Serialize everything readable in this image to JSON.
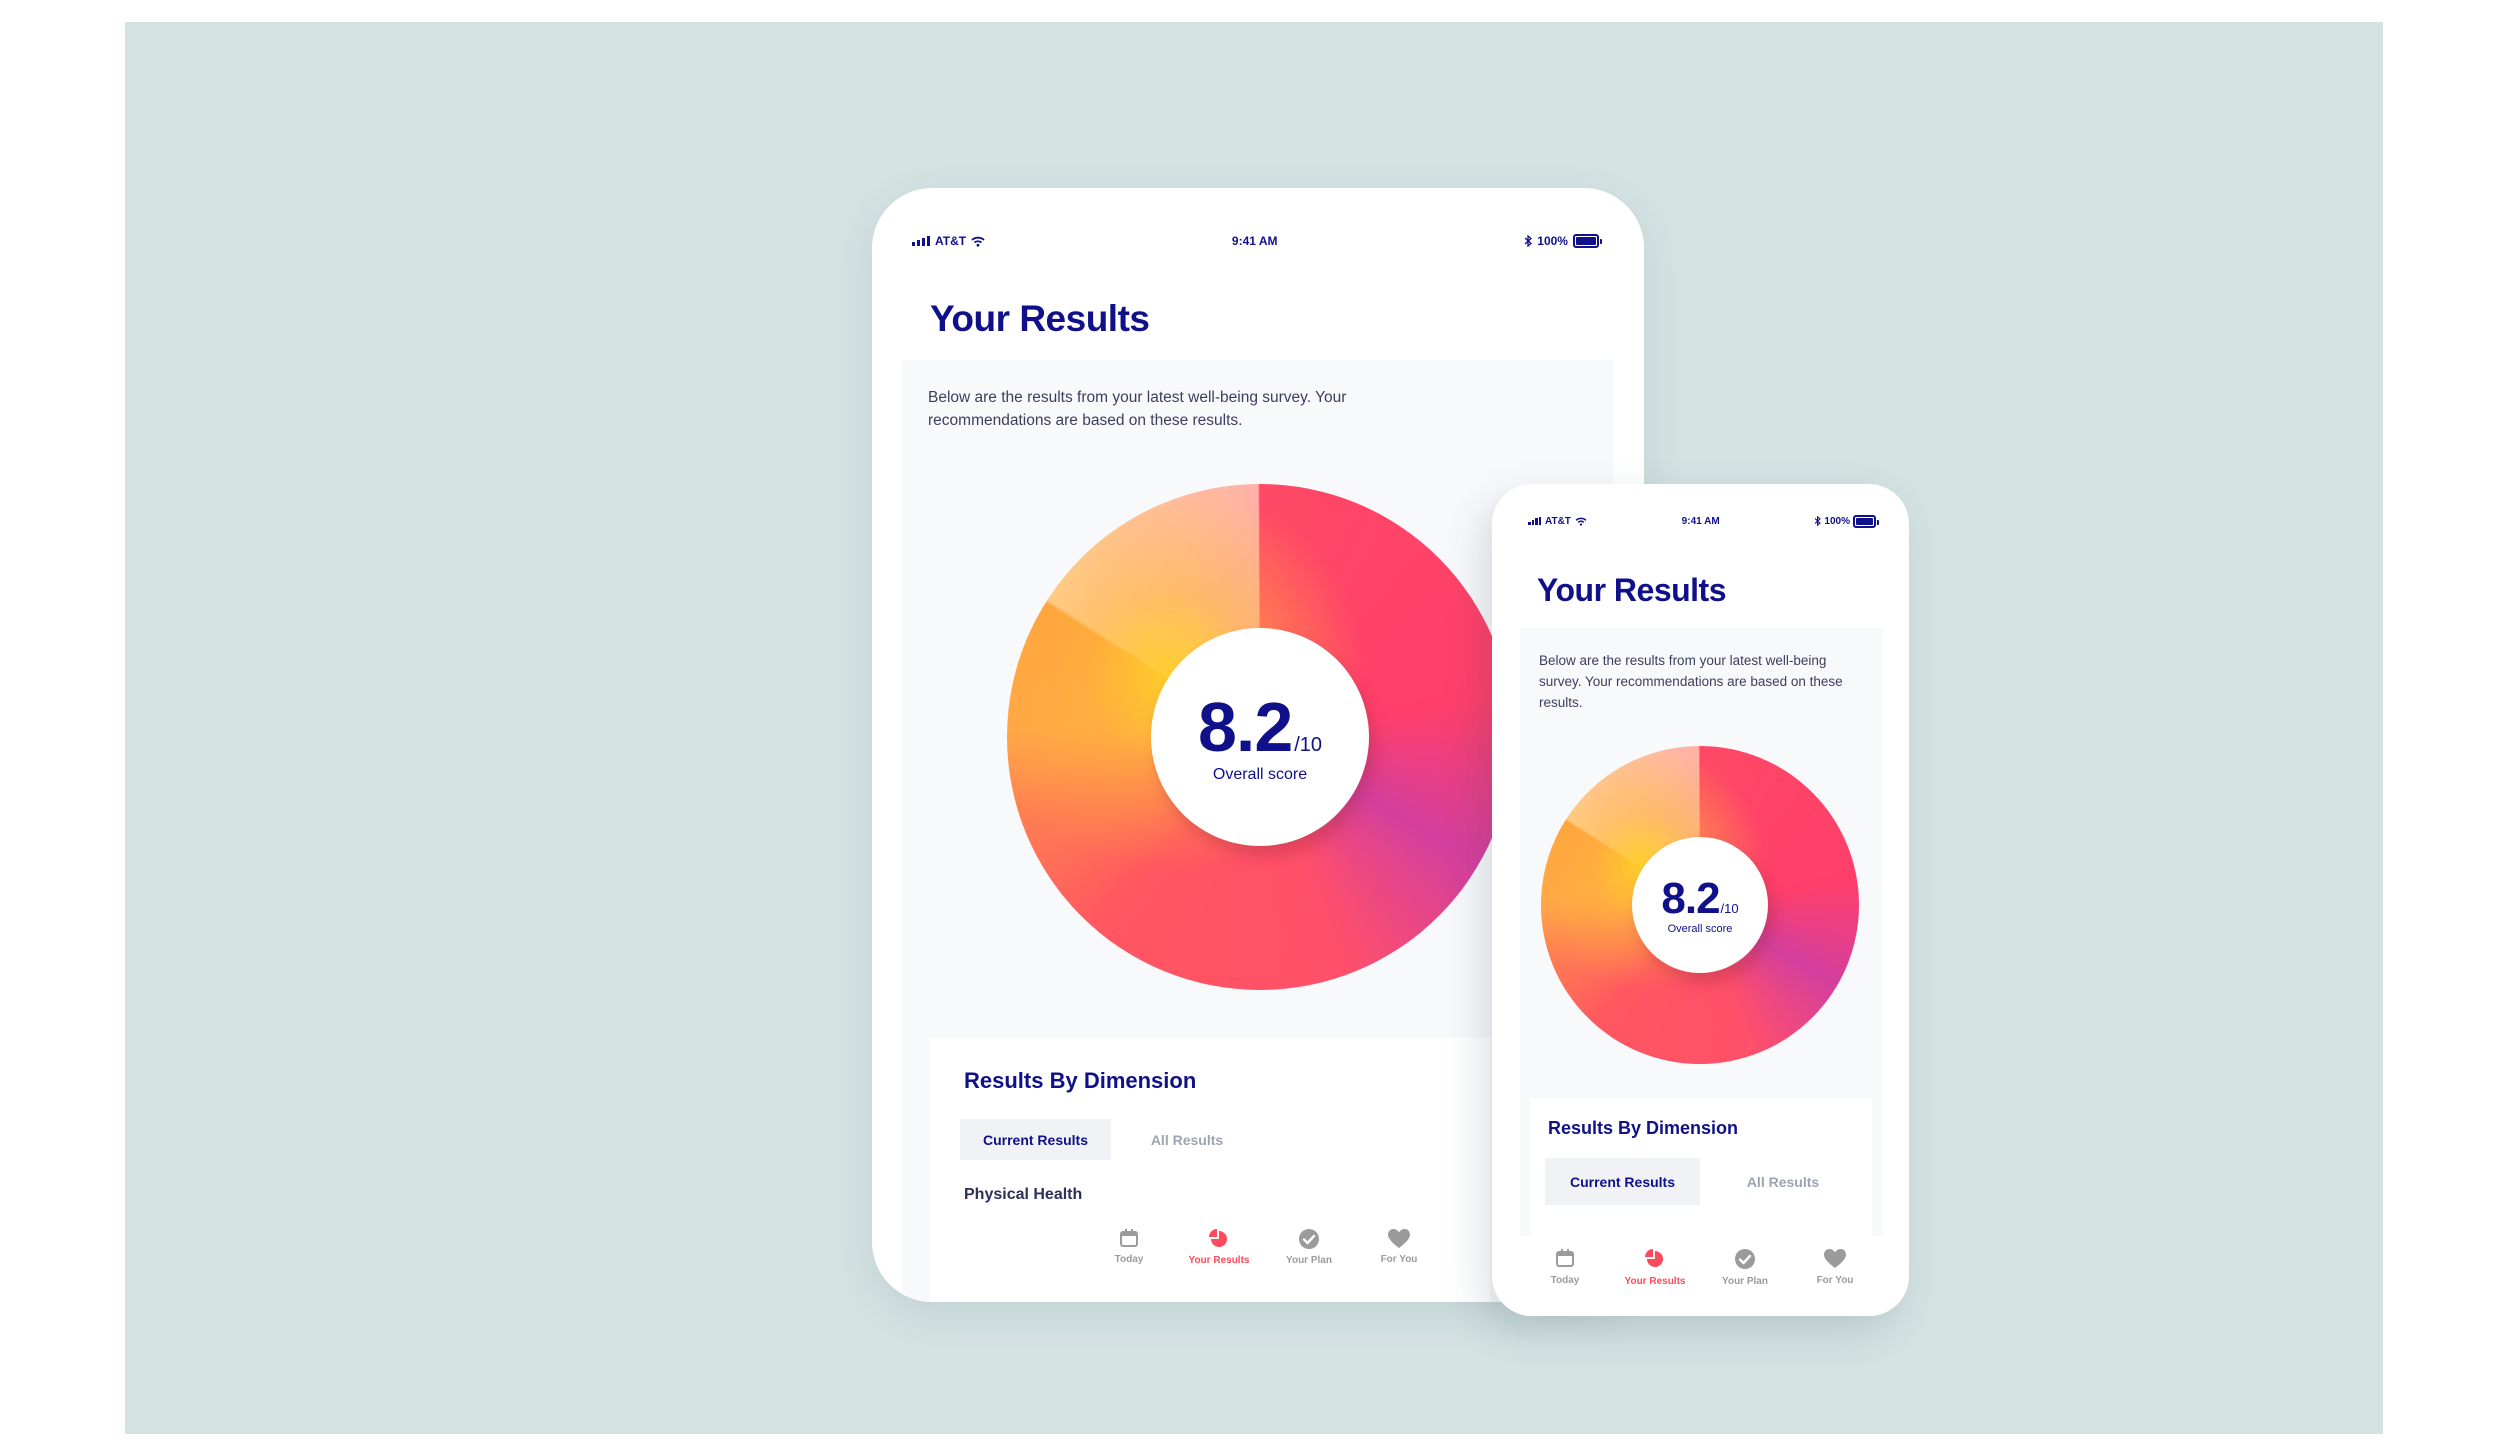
{
  "status_bar": {
    "carrier": "AT&T",
    "time": "9:41 AM",
    "battery": "100%"
  },
  "screen": {
    "title": "Your Results",
    "intro": "Below are the results from your latest well-being survey. Your recommendations are based on these results."
  },
  "score": {
    "value": "8.2",
    "max": "/10",
    "label": "Overall score"
  },
  "dimensions": {
    "title": "Results By Dimension",
    "tabs": {
      "current": "Current Results",
      "all": "All Results"
    },
    "first_item": "Physical Health"
  },
  "tabbar": {
    "today": "Today",
    "results": "Your Results",
    "plan": "Your Plan",
    "foryou": "For You",
    "active": "results"
  },
  "colors": {
    "primary": "#10108a",
    "accent": "#ff4a5c",
    "background": "#d4e2e2",
    "inactive": "#9b9b9b"
  }
}
